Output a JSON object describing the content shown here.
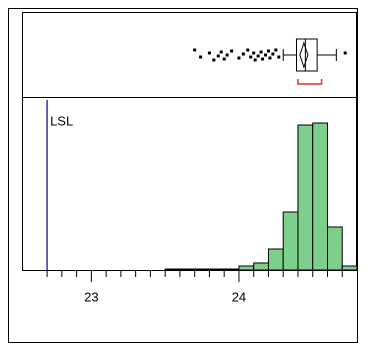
{
  "chart_data": {
    "type": "histogram",
    "bins": [
      23.5,
      23.6,
      23.7,
      23.8,
      23.9,
      24.0,
      24.1,
      24.2,
      24.3,
      24.4,
      24.5,
      24.6,
      24.7,
      24.8
    ],
    "values": [
      1,
      1,
      1,
      1,
      1,
      4,
      7,
      21,
      58,
      145,
      147,
      43,
      4
    ],
    "color": "#7fcf8c",
    "xlim": [
      22.53,
      24.8
    ],
    "ylim": [
      0,
      170
    ],
    "xticks": [
      23,
      24
    ],
    "minor_xticks": [
      22.7,
      22.8,
      22.9,
      23.1,
      23.2,
      23.3,
      23.4,
      23.5,
      23.6,
      23.7,
      23.8,
      23.9,
      24.1,
      24.2,
      24.3,
      24.4,
      24.5,
      24.6,
      24.7
    ],
    "spec_limit": {
      "label": "LSL",
      "value": 22.7,
      "color": "#3333aa"
    },
    "box": {
      "whisker_low": 24.3,
      "q1": 24.39,
      "median": 24.45,
      "mean": 24.44,
      "q3": 24.53,
      "whisker_high": 24.66,
      "shortest_half": [
        24.4,
        24.56
      ],
      "outliers": [
        23.7,
        23.74,
        23.8,
        23.83,
        23.86,
        23.88,
        23.9,
        23.92,
        23.95,
        24.0,
        24.03,
        24.06,
        24.08,
        24.1,
        24.11,
        24.13,
        24.15,
        24.16,
        24.18,
        24.2,
        24.21,
        24.23,
        24.25,
        24.27,
        24.72
      ]
    }
  }
}
